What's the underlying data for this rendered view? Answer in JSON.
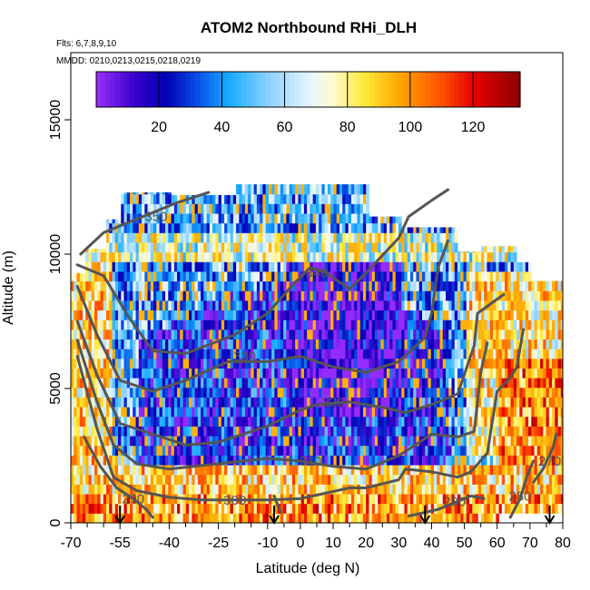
{
  "chart_data": {
    "type": "heatmap",
    "title": "ATOM2 Northbound RHi_DLH",
    "subtitle_flights": "Flts: 6,7,8,9,10",
    "subtitle_dates": "MMDD: 0210,0213,0215,0218,0219",
    "xlabel": "Latitude (deg N)",
    "ylabel": "Altitude (m)",
    "xlim": [
      -70,
      80
    ],
    "ylim": [
      0,
      17500
    ],
    "x_ticks": [
      {
        "v": -70,
        "label": "-70"
      },
      {
        "v": -55,
        "label": "-55"
      },
      {
        "v": -40,
        "label": "-40"
      },
      {
        "v": -25,
        "label": "-25"
      },
      {
        "v": -10,
        "label": "-10"
      },
      {
        "v": 0,
        "label": "0"
      },
      {
        "v": 10,
        "label": "10"
      },
      {
        "v": 20,
        "label": "20"
      },
      {
        "v": 30,
        "label": "30"
      },
      {
        "v": 40,
        "label": "40"
      },
      {
        "v": 50,
        "label": "50"
      },
      {
        "v": 60,
        "label": "60"
      },
      {
        "v": 70,
        "label": "70"
      },
      {
        "v": 80,
        "label": "80"
      }
    ],
    "x_minor_ticks": [
      -65,
      -60,
      -50,
      -45,
      -35,
      -30,
      -20,
      -15,
      -5,
      5,
      15,
      25,
      35,
      45,
      55,
      65,
      75
    ],
    "y_ticks": [
      {
        "v": 0,
        "label": "0"
      },
      {
        "v": 5000,
        "label": "5000"
      },
      {
        "v": 10000,
        "label": "10000"
      },
      {
        "v": 15000,
        "label": "15000"
      }
    ],
    "colorbar": {
      "min": 0,
      "max": 135,
      "ticks": [
        20,
        40,
        60,
        80,
        100,
        120
      ],
      "stops": [
        {
          "v": 0,
          "c": "#9b30ff"
        },
        {
          "v": 12,
          "c": "#3a00cc"
        },
        {
          "v": 22,
          "c": "#0000b4"
        },
        {
          "v": 32,
          "c": "#0a4be6"
        },
        {
          "v": 42,
          "c": "#14aaff"
        },
        {
          "v": 55,
          "c": "#8cd2ff"
        },
        {
          "v": 68,
          "c": "#e6f5ff"
        },
        {
          "v": 75,
          "c": "#fffad2"
        },
        {
          "v": 85,
          "c": "#ffeb3c"
        },
        {
          "v": 97,
          "c": "#ffa500"
        },
        {
          "v": 110,
          "c": "#ff5000"
        },
        {
          "v": 120,
          "c": "#e60000"
        },
        {
          "v": 135,
          "c": "#8c0000"
        }
      ]
    },
    "flight_markers_lat": [
      -55,
      -8,
      38,
      76
    ],
    "theta_contours": [
      {
        "label": "350",
        "label_at": [
          -44,
          11400
        ],
        "points": [
          [
            -67,
            10000
          ],
          [
            -60,
            10800
          ],
          [
            -50,
            11300
          ],
          [
            -38,
            11900
          ],
          [
            -28,
            12300
          ]
        ]
      },
      {
        "label": "340",
        "label_at": [
          5,
          9300
        ],
        "points": [
          [
            -68,
            9600
          ],
          [
            -60,
            9200
          ],
          [
            -52,
            7600
          ],
          [
            -45,
            6400
          ],
          [
            -35,
            6300
          ],
          [
            -20,
            7000
          ],
          [
            -10,
            7800
          ],
          [
            -2,
            8900
          ],
          [
            3,
            9500
          ],
          [
            8,
            9300
          ],
          [
            15,
            8700
          ],
          [
            20,
            9300
          ],
          [
            30,
            10600
          ],
          [
            33,
            11400
          ],
          [
            40,
            12000
          ],
          [
            45,
            12400
          ]
        ]
      },
      {
        "label": "330",
        "label_at": [
          -17,
          6200
        ],
        "points": [
          [
            -68,
            8800
          ],
          [
            -62,
            7000
          ],
          [
            -55,
            5300
          ],
          [
            -45,
            4900
          ],
          [
            -35,
            5300
          ],
          [
            -22,
            6000
          ],
          [
            -10,
            6000
          ],
          [
            0,
            6200
          ],
          [
            10,
            5800
          ],
          [
            20,
            5600
          ],
          [
            30,
            6000
          ],
          [
            38,
            6900
          ],
          [
            40,
            7800
          ],
          [
            42,
            9500
          ],
          [
            45,
            10500
          ]
        ]
      },
      {
        "label": "320",
        "label_at": [
          10,
          4500
        ],
        "points": [
          [
            -68,
            7500
          ],
          [
            -62,
            5500
          ],
          [
            -55,
            3700
          ],
          [
            -45,
            3300
          ],
          [
            -35,
            2900
          ],
          [
            -25,
            3000
          ],
          [
            -10,
            3600
          ],
          [
            0,
            4200
          ],
          [
            5,
            4400
          ],
          [
            15,
            4500
          ],
          [
            25,
            4300
          ],
          [
            32,
            4100
          ],
          [
            40,
            4400
          ],
          [
            48,
            4800
          ],
          [
            53,
            6600
          ],
          [
            54,
            7800
          ],
          [
            62,
            8500
          ]
        ]
      },
      {
        "label": "310",
        "label_at": [
          3,
          2300
        ],
        "points": [
          [
            -68,
            6800
          ],
          [
            -62,
            4500
          ],
          [
            -57,
            2900
          ],
          [
            -50,
            2200
          ],
          [
            -40,
            2000
          ],
          [
            -25,
            2200
          ],
          [
            -10,
            2400
          ],
          [
            0,
            2300
          ],
          [
            10,
            2100
          ],
          [
            20,
            2000
          ],
          [
            30,
            2500
          ],
          [
            35,
            2900
          ],
          [
            40,
            3300
          ],
          [
            48,
            3200
          ],
          [
            53,
            3400
          ],
          [
            55,
            5600
          ],
          [
            57,
            6700
          ]
        ]
      },
      {
        "label": "300",
        "label_at": [
          -20,
          850
        ],
        "points": [
          [
            -68,
            6200
          ],
          [
            -62,
            3500
          ],
          [
            -57,
            1700
          ],
          [
            -50,
            1200
          ],
          [
            -40,
            950
          ],
          [
            -30,
            850
          ],
          [
            -20,
            850
          ],
          [
            -10,
            850
          ],
          [
            0,
            900
          ],
          [
            15,
            1300
          ],
          [
            20,
            1300
          ],
          [
            30,
            1600
          ],
          [
            32,
            2000
          ],
          [
            40,
            1900
          ],
          [
            48,
            1700
          ],
          [
            52,
            1900
          ],
          [
            57,
            2600
          ],
          [
            60,
            4900
          ],
          [
            64,
            5400
          ],
          [
            66,
            5800
          ],
          [
            68,
            7200
          ]
        ]
      },
      {
        "label": "290",
        "label_at": [
          -51,
          900
        ],
        "points": [
          [
            -66,
            3200
          ],
          [
            -61,
            2100
          ],
          [
            -56,
            1300
          ],
          [
            -51,
            900
          ],
          [
            -47,
            500
          ],
          [
            -45,
            200
          ]
        ]
      },
      {
        "label": "290",
        "label_at": [
          47,
          800
        ],
        "points": [
          [
            33,
            250
          ],
          [
            42,
            500
          ],
          [
            48,
            800
          ],
          [
            52,
            1000
          ],
          [
            56,
            900
          ]
        ]
      },
      {
        "label": "280",
        "label_at": [
          67,
          1000
        ],
        "points": [
          [
            64,
            200
          ],
          [
            67,
            900
          ],
          [
            69,
            1700
          ],
          [
            71,
            2300
          ]
        ]
      },
      {
        "label": "270",
        "label_at": [
          76,
          2300
        ],
        "points": [
          [
            71,
            1500
          ],
          [
            74,
            2000
          ],
          [
            77,
            2800
          ],
          [
            78,
            3300
          ]
        ]
      },
      {
        "label": "",
        "label_at": [
          0,
          0
        ],
        "points": [
          [
            -8,
            1000
          ],
          [
            -7,
            700
          ],
          [
            -6,
            400
          ]
        ]
      }
    ]
  }
}
